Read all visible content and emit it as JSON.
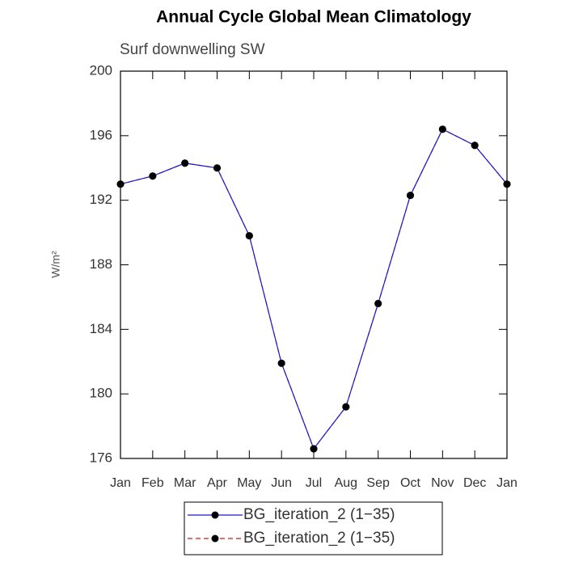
{
  "chart_data": {
    "type": "line",
    "title": "Annual Cycle Global Mean Climatology",
    "subtitle": "Surf downwelling SW",
    "y_label": "W/m²",
    "categories": [
      "Jan",
      "Feb",
      "Mar",
      "Apr",
      "May",
      "Jun",
      "Jul",
      "Aug",
      "Sep",
      "Oct",
      "Nov",
      "Dec",
      "Jan"
    ],
    "series": [
      {
        "name": "BG_iteration_2 (1−35)",
        "color": "#1a1acc",
        "line_style": "solid",
        "values": [
          193.0,
          193.5,
          194.3,
          194.0,
          189.8,
          181.9,
          176.6,
          179.2,
          185.6,
          192.3,
          196.4,
          195.4,
          193.0
        ]
      },
      {
        "name": "BG_iteration_2 (1−35)",
        "color": "#cc1a1a",
        "line_style": "dashed",
        "values": [
          193.0,
          193.5,
          194.3,
          194.0,
          189.8,
          181.9,
          176.6,
          179.2,
          185.6,
          192.3,
          196.4,
          195.4,
          193.0
        ]
      }
    ],
    "ylim": [
      176,
      200
    ],
    "yticks": [
      176,
      180,
      184,
      188,
      192,
      196,
      200
    ]
  }
}
